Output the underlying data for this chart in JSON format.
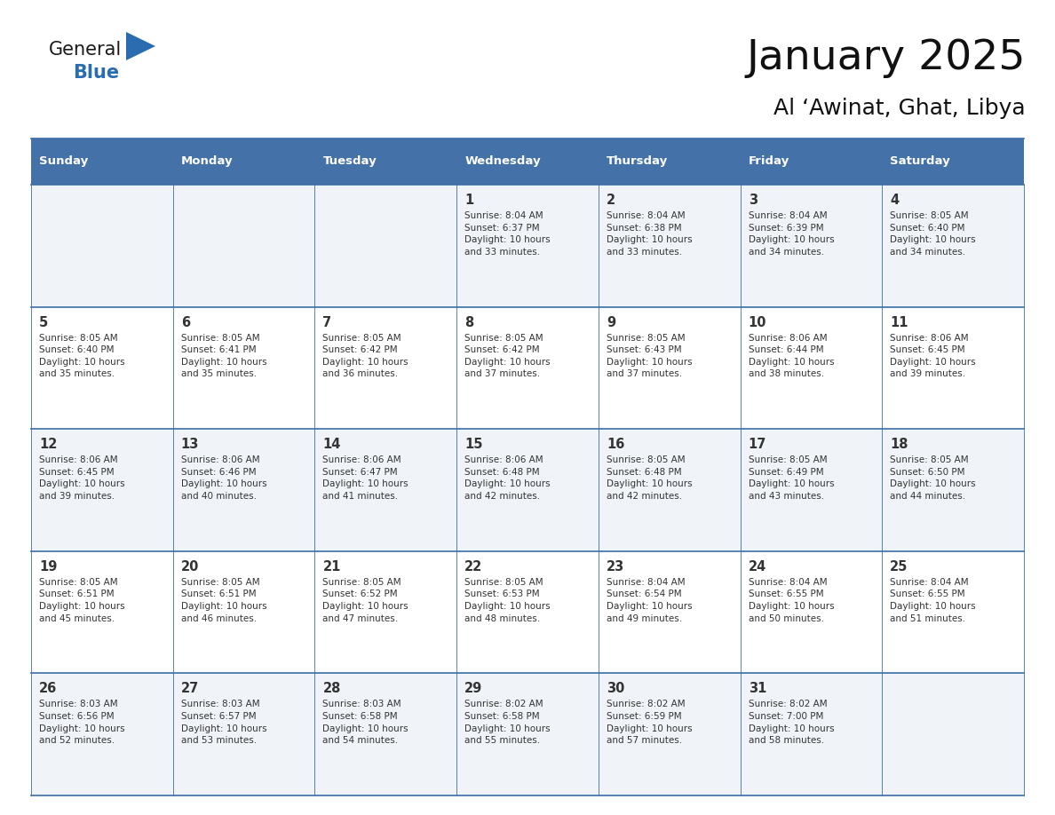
{
  "title": "January 2025",
  "subtitle": "Al ‘Awinat, Ghat, Libya",
  "header_color": "#4472a8",
  "header_text_color": "#ffffff",
  "cell_bg_color_odd": "#f0f4f8",
  "cell_bg_color_even": "#ffffff",
  "border_color": "#3a6ea8",
  "text_color": "#333333",
  "day_names": [
    "Sunday",
    "Monday",
    "Tuesday",
    "Wednesday",
    "Thursday",
    "Friday",
    "Saturday"
  ],
  "weeks": [
    [
      {
        "day": "",
        "info": ""
      },
      {
        "day": "",
        "info": ""
      },
      {
        "day": "",
        "info": ""
      },
      {
        "day": "1",
        "info": "Sunrise: 8:04 AM\nSunset: 6:37 PM\nDaylight: 10 hours\nand 33 minutes."
      },
      {
        "day": "2",
        "info": "Sunrise: 8:04 AM\nSunset: 6:38 PM\nDaylight: 10 hours\nand 33 minutes."
      },
      {
        "day": "3",
        "info": "Sunrise: 8:04 AM\nSunset: 6:39 PM\nDaylight: 10 hours\nand 34 minutes."
      },
      {
        "day": "4",
        "info": "Sunrise: 8:05 AM\nSunset: 6:40 PM\nDaylight: 10 hours\nand 34 minutes."
      }
    ],
    [
      {
        "day": "5",
        "info": "Sunrise: 8:05 AM\nSunset: 6:40 PM\nDaylight: 10 hours\nand 35 minutes."
      },
      {
        "day": "6",
        "info": "Sunrise: 8:05 AM\nSunset: 6:41 PM\nDaylight: 10 hours\nand 35 minutes."
      },
      {
        "day": "7",
        "info": "Sunrise: 8:05 AM\nSunset: 6:42 PM\nDaylight: 10 hours\nand 36 minutes."
      },
      {
        "day": "8",
        "info": "Sunrise: 8:05 AM\nSunset: 6:42 PM\nDaylight: 10 hours\nand 37 minutes."
      },
      {
        "day": "9",
        "info": "Sunrise: 8:05 AM\nSunset: 6:43 PM\nDaylight: 10 hours\nand 37 minutes."
      },
      {
        "day": "10",
        "info": "Sunrise: 8:06 AM\nSunset: 6:44 PM\nDaylight: 10 hours\nand 38 minutes."
      },
      {
        "day": "11",
        "info": "Sunrise: 8:06 AM\nSunset: 6:45 PM\nDaylight: 10 hours\nand 39 minutes."
      }
    ],
    [
      {
        "day": "12",
        "info": "Sunrise: 8:06 AM\nSunset: 6:45 PM\nDaylight: 10 hours\nand 39 minutes."
      },
      {
        "day": "13",
        "info": "Sunrise: 8:06 AM\nSunset: 6:46 PM\nDaylight: 10 hours\nand 40 minutes."
      },
      {
        "day": "14",
        "info": "Sunrise: 8:06 AM\nSunset: 6:47 PM\nDaylight: 10 hours\nand 41 minutes."
      },
      {
        "day": "15",
        "info": "Sunrise: 8:06 AM\nSunset: 6:48 PM\nDaylight: 10 hours\nand 42 minutes."
      },
      {
        "day": "16",
        "info": "Sunrise: 8:05 AM\nSunset: 6:48 PM\nDaylight: 10 hours\nand 42 minutes."
      },
      {
        "day": "17",
        "info": "Sunrise: 8:05 AM\nSunset: 6:49 PM\nDaylight: 10 hours\nand 43 minutes."
      },
      {
        "day": "18",
        "info": "Sunrise: 8:05 AM\nSunset: 6:50 PM\nDaylight: 10 hours\nand 44 minutes."
      }
    ],
    [
      {
        "day": "19",
        "info": "Sunrise: 8:05 AM\nSunset: 6:51 PM\nDaylight: 10 hours\nand 45 minutes."
      },
      {
        "day": "20",
        "info": "Sunrise: 8:05 AM\nSunset: 6:51 PM\nDaylight: 10 hours\nand 46 minutes."
      },
      {
        "day": "21",
        "info": "Sunrise: 8:05 AM\nSunset: 6:52 PM\nDaylight: 10 hours\nand 47 minutes."
      },
      {
        "day": "22",
        "info": "Sunrise: 8:05 AM\nSunset: 6:53 PM\nDaylight: 10 hours\nand 48 minutes."
      },
      {
        "day": "23",
        "info": "Sunrise: 8:04 AM\nSunset: 6:54 PM\nDaylight: 10 hours\nand 49 minutes."
      },
      {
        "day": "24",
        "info": "Sunrise: 8:04 AM\nSunset: 6:55 PM\nDaylight: 10 hours\nand 50 minutes."
      },
      {
        "day": "25",
        "info": "Sunrise: 8:04 AM\nSunset: 6:55 PM\nDaylight: 10 hours\nand 51 minutes."
      }
    ],
    [
      {
        "day": "26",
        "info": "Sunrise: 8:03 AM\nSunset: 6:56 PM\nDaylight: 10 hours\nand 52 minutes."
      },
      {
        "day": "27",
        "info": "Sunrise: 8:03 AM\nSunset: 6:57 PM\nDaylight: 10 hours\nand 53 minutes."
      },
      {
        "day": "28",
        "info": "Sunrise: 8:03 AM\nSunset: 6:58 PM\nDaylight: 10 hours\nand 54 minutes."
      },
      {
        "day": "29",
        "info": "Sunrise: 8:02 AM\nSunset: 6:58 PM\nDaylight: 10 hours\nand 55 minutes."
      },
      {
        "day": "30",
        "info": "Sunrise: 8:02 AM\nSunset: 6:59 PM\nDaylight: 10 hours\nand 57 minutes."
      },
      {
        "day": "31",
        "info": "Sunrise: 8:02 AM\nSunset: 7:00 PM\nDaylight: 10 hours\nand 58 minutes."
      },
      {
        "day": "",
        "info": ""
      }
    ]
  ],
  "logo_general_color": "#1a1a1a",
  "logo_blue_color": "#2b6cb0"
}
